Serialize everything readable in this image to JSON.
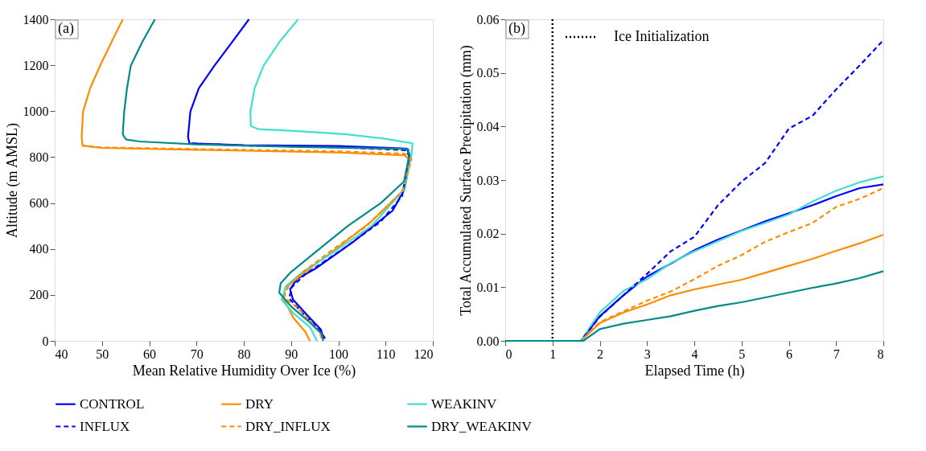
{
  "chart_data": [
    {
      "type": "line",
      "title": "(a)",
      "xlabel": "Mean Relative Humidity Over Ice (%)",
      "ylabel": "Altitude (m AMSL)",
      "xlim": [
        40,
        120
      ],
      "xticks": [
        40,
        50,
        60,
        70,
        80,
        90,
        100,
        110,
        120
      ],
      "ylim": [
        0,
        1400
      ],
      "yticks": [
        0,
        200,
        400,
        600,
        800,
        1000,
        1200,
        1400
      ],
      "legend": "bottom",
      "series": [
        {
          "name": "CONTROL",
          "color": "#0000ff",
          "line_style": "solid",
          "x": [
            96.9,
            96.3,
            93.5,
            90.4,
            89.8,
            91.3,
            95.2,
            103.1,
            111.5,
            114.0,
            114.9,
            115.1,
            114.5,
            100,
            80,
            68.5,
            68.2,
            68.7,
            70.5,
            73.8,
            77.5,
            81.1
          ],
          "values": [
            10,
            50,
            110,
            180,
            225,
            270,
            315,
            430,
            567,
            660,
            760,
            810,
            837,
            848,
            852,
            860,
            888,
            998,
            1100,
            1198,
            1300,
            1400
          ]
        },
        {
          "name": "DRY",
          "color": "#ff8c00",
          "line_style": "solid",
          "x": [
            94.0,
            93,
            90.5,
            88.5,
            88.7,
            93,
            99.5,
            107,
            114,
            115,
            114,
            100,
            70,
            50,
            45.9,
            45.7,
            46.0,
            47.5,
            49.6,
            52,
            54.4
          ],
          "values": [
            0,
            40,
            100,
            180,
            230,
            300,
            400,
            520,
            660,
            790,
            808,
            820,
            832,
            840,
            850,
            888,
            998,
            1100,
            1198,
            1300,
            1400
          ]
        },
        {
          "name": "WEAKINV",
          "color": "#40e0d0",
          "line_style": "solid",
          "x": [
            95.5,
            94,
            90.5,
            88,
            89,
            92.5,
            100,
            107,
            114,
            115.5,
            115.7,
            110,
            101.4,
            90,
            83,
            81.5,
            81.4,
            82.3,
            84.2,
            87.5,
            91.5
          ],
          "values": [
            0,
            60,
            120,
            180,
            240,
            300,
            400,
            500,
            660,
            810,
            860,
            880,
            900,
            915,
            922,
            935,
            998,
            1100,
            1198,
            1300,
            1400
          ]
        },
        {
          "name": "INFLUX",
          "color": "#0000ff",
          "line_style": "dashed",
          "x": [
            97.2,
            96,
            92.5,
            89.6,
            90.2,
            93,
            101,
            109,
            113.5,
            115,
            114.5,
            100,
            80,
            68.5
          ],
          "values": [
            10,
            50,
            120,
            185,
            235,
            290,
            400,
            520,
            630,
            800,
            830,
            843,
            850,
            860
          ]
        },
        {
          "name": "DRY_INFLUX",
          "color": "#ff8c00",
          "line_style": "dashed",
          "x": [
            96.5,
            96,
            93.5,
            91,
            88.5,
            89.5,
            92.5,
            99,
            106,
            113.5,
            115.5,
            114,
            100,
            70,
            50,
            45.9
          ],
          "values": [
            10,
            40,
            100,
            150,
            190,
            240,
            300,
            400,
            500,
            650,
            790,
            815,
            825,
            835,
            842,
            850
          ]
        },
        {
          "name": "DRY_WEAKINV",
          "color": "#008b8b",
          "line_style": "solid",
          "x": [
            96.8,
            96.5,
            94,
            90,
            87.5,
            87.8,
            90,
            96,
            102,
            109,
            113.9,
            115,
            114.8,
            90,
            70,
            58,
            55.2,
            54.7,
            54.4,
            54.7,
            55.3,
            56.1,
            58.5,
            61.2
          ],
          "values": [
            0,
            30,
            80,
            150,
            210,
            250,
            300,
            400,
            500,
            600,
            694,
            808,
            835,
            845,
            855,
            868,
            876,
            888,
            900,
            998,
            1100,
            1198,
            1300,
            1400
          ]
        }
      ]
    },
    {
      "type": "line",
      "title": "(b)",
      "xlabel": "Elapsed Time (h)",
      "ylabel": "Total Accumulated Surface Precipitation (mm)",
      "xlim": [
        0,
        8
      ],
      "xticks": [
        0,
        1,
        2,
        3,
        4,
        5,
        6,
        7,
        8
      ],
      "ylim": [
        0,
        0.06
      ],
      "yticks": [
        {
          "value": 0,
          "label": "0.00"
        },
        {
          "value": 0.01,
          "label": "0.01"
        },
        {
          "value": 0.02,
          "label": "0.02"
        },
        {
          "value": 0.03,
          "label": "0.03"
        },
        {
          "value": 0.04,
          "label": "0.04"
        },
        {
          "value": 0.05,
          "label": "0.05"
        },
        {
          "value": 0.06,
          "label": "0.06"
        }
      ],
      "legend": "top left",
      "ref_lines": [
        {
          "axis": "x",
          "value": 1,
          "label": "Ice Initialization",
          "color": "#000000",
          "line_style": "dotted"
        }
      ],
      "series": [
        {
          "name": "CONTROL",
          "color": "#0000ff",
          "line_style": "solid",
          "x": [
            0,
            1.6,
            2,
            2.5,
            3,
            3.5,
            4,
            4.5,
            5,
            5.5,
            6,
            6.5,
            7,
            7.5,
            8
          ],
          "values": [
            0,
            0,
            0.0046,
            0.0085,
            0.012,
            0.0144,
            0.0169,
            0.0189,
            0.0206,
            0.0223,
            0.0238,
            0.0253,
            0.027,
            0.0285,
            0.0292
          ]
        },
        {
          "name": "DRY",
          "color": "#ff8c00",
          "line_style": "solid",
          "x": [
            0,
            1.6,
            2,
            2.5,
            3,
            3.5,
            4,
            4.5,
            5,
            5.5,
            6,
            6.5,
            7,
            7.5,
            8
          ],
          "values": [
            0,
            0,
            0.0033,
            0.0053,
            0.0068,
            0.0085,
            0.0096,
            0.0105,
            0.0114,
            0.0127,
            0.014,
            0.0153,
            0.0168,
            0.0182,
            0.0198
          ]
        },
        {
          "name": "WEAKINV",
          "color": "#40e0d0",
          "line_style": "solid",
          "x": [
            0,
            1.6,
            2,
            2.5,
            3,
            3.5,
            4,
            4.5,
            5,
            5.5,
            6,
            6.5,
            7,
            7.5,
            8
          ],
          "values": [
            0,
            0,
            0.0053,
            0.0093,
            0.0115,
            0.0145,
            0.0167,
            0.0186,
            0.0205,
            0.022,
            0.0236,
            0.026,
            0.028,
            0.0296,
            0.0307
          ]
        },
        {
          "name": "INFLUX",
          "color": "#0000ff",
          "line_style": "dashed",
          "x": [
            0,
            1.6,
            2,
            2.5,
            3,
            3.5,
            4,
            4.5,
            5,
            5.5,
            6,
            6.5,
            7,
            7.5,
            8
          ],
          "values": [
            0,
            0,
            0.0045,
            0.0085,
            0.0125,
            0.0167,
            0.0194,
            0.0253,
            0.0297,
            0.0332,
            0.0396,
            0.042,
            0.0469,
            0.0514,
            0.0561
          ]
        },
        {
          "name": "DRY_INFLUX",
          "color": "#ff8c00",
          "line_style": "dashed",
          "x": [
            0,
            1.6,
            2,
            2.5,
            3,
            3.5,
            4,
            4.5,
            5,
            5.5,
            6,
            6.5,
            7,
            7.5,
            8
          ],
          "values": [
            0,
            0,
            0.0035,
            0.0055,
            0.0075,
            0.0092,
            0.0115,
            0.014,
            0.016,
            0.0185,
            0.0203,
            0.022,
            0.025,
            0.0265,
            0.0285
          ]
        },
        {
          "name": "DRY_WEAKINV",
          "color": "#008b8b",
          "line_style": "solid",
          "x": [
            0,
            1.65,
            2,
            2.5,
            3,
            3.5,
            4,
            4.5,
            5,
            5.5,
            6,
            6.5,
            7,
            7.5,
            8
          ],
          "values": [
            0,
            0,
            0.0022,
            0.0032,
            0.0039,
            0.0046,
            0.0056,
            0.0065,
            0.0072,
            0.0081,
            0.009,
            0.0099,
            0.0107,
            0.0117,
            0.013
          ]
        }
      ]
    }
  ]
}
